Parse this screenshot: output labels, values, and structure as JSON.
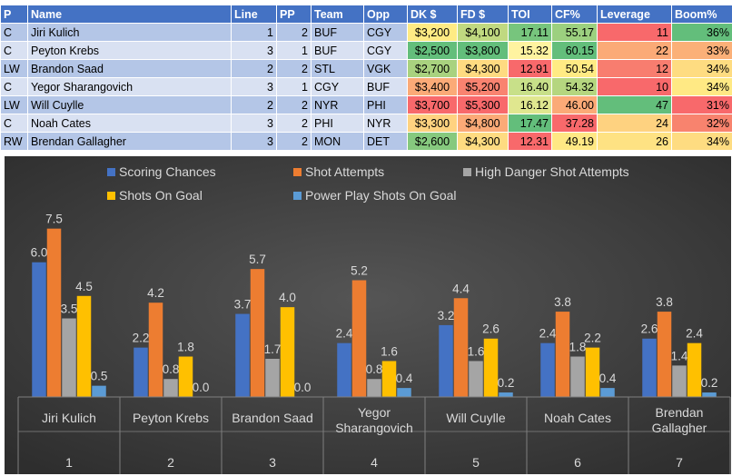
{
  "table": {
    "headers": [
      "P",
      "Name",
      "Line",
      "PP",
      "Team",
      "Opp",
      "DK $",
      "FD $",
      "TOI",
      "CF%",
      "Leverage",
      "Boom%"
    ],
    "rows": [
      {
        "P": "C",
        "Name": "Jiri Kulich",
        "Line": "1",
        "PP": "2",
        "Team": "BUF",
        "Opp": "CGY",
        "DK": "$3,200",
        "FD": "$4,100",
        "TOI": "17.11",
        "CF": "55.17",
        "Leverage": "11",
        "Boom": "36%"
      },
      {
        "P": "C",
        "Name": "Peyton Krebs",
        "Line": "3",
        "PP": "1",
        "Team": "BUF",
        "Opp": "CGY",
        "DK": "$2,500",
        "FD": "$3,800",
        "TOI": "15.32",
        "CF": "60.15",
        "Leverage": "22",
        "Boom": "33%"
      },
      {
        "P": "LW",
        "Name": "Brandon Saad",
        "Line": "2",
        "PP": "2",
        "Team": "STL",
        "Opp": "VGK",
        "DK": "$2,700",
        "FD": "$4,300",
        "TOI": "12.91",
        "CF": "50.54",
        "Leverage": "12",
        "Boom": "34%"
      },
      {
        "P": "C",
        "Name": "Yegor Sharangovich",
        "Line": "3",
        "PP": "1",
        "Team": "CGY",
        "Opp": "BUF",
        "DK": "$3,400",
        "FD": "$5,200",
        "TOI": "16.40",
        "CF": "54.32",
        "Leverage": "10",
        "Boom": "34%"
      },
      {
        "P": "LW",
        "Name": "Will Cuylle",
        "Line": "2",
        "PP": "2",
        "Team": "NYR",
        "Opp": "PHI",
        "DK": "$3,700",
        "FD": "$5,300",
        "TOI": "16.12",
        "CF": "46.00",
        "Leverage": "47",
        "Boom": "31%"
      },
      {
        "P": "C",
        "Name": "Noah Cates",
        "Line": "3",
        "PP": "2",
        "Team": "PHI",
        "Opp": "NYR",
        "DK": "$3,300",
        "FD": "$4,800",
        "TOI": "17.47",
        "CF": "37.28",
        "Leverage": "24",
        "Boom": "32%"
      },
      {
        "P": "RW",
        "Name": "Brendan Gallagher",
        "Line": "3",
        "PP": "2",
        "Team": "MON",
        "Opp": "DET",
        "DK": "$2,600",
        "FD": "$4,300",
        "TOI": "12.31",
        "CF": "49.19",
        "Leverage": "26",
        "Boom": "34%"
      }
    ],
    "cell_colors": {
      "DK": [
        "#ffeb84",
        "#63be7b",
        "#a9d27f",
        "#fbaa77",
        "#f8696b",
        "#ffd280",
        "#86c97e"
      ],
      "FD": [
        "#c0d980",
        "#63be7b",
        "#fedb81",
        "#f98370",
        "#f8696b",
        "#fbaa77",
        "#fedb81"
      ],
      "TOI": [
        "#77c57d",
        "#fff3a0",
        "#f8696b",
        "#c8e089",
        "#e0e78f",
        "#63be7b",
        "#f8696b"
      ],
      "CF": [
        "#9cd07f",
        "#63be7b",
        "#ffeb84",
        "#b5d67f",
        "#fbaa77",
        "#f8696b",
        "#ffe884"
      ],
      "Leverage": [
        "#f8696b",
        "#fbaa77",
        "#f87d6f",
        "#f8696b",
        "#63be7b",
        "#fed280",
        "#fee283"
      ],
      "Boom": [
        "#63be7b",
        "#fbb078",
        "#fedc81",
        "#ffe984",
        "#f8696b",
        "#f8836e",
        "#fedc81"
      ]
    }
  },
  "chart_data": {
    "type": "bar",
    "background": "#404040",
    "categories": [
      {
        "name": "Jiri Kulich",
        "name_lines": [
          "Jiri Kulich"
        ],
        "index": "1"
      },
      {
        "name": "Peyton Krebs",
        "name_lines": [
          "Peyton Krebs"
        ],
        "index": "2"
      },
      {
        "name": "Brandon Saad",
        "name_lines": [
          "Brandon Saad"
        ],
        "index": "3"
      },
      {
        "name": "Yegor Sharangovich",
        "name_lines": [
          "Yegor",
          "Sharangovich"
        ],
        "index": "4"
      },
      {
        "name": "Will Cuylle",
        "name_lines": [
          "Will Cuylle"
        ],
        "index": "5"
      },
      {
        "name": "Noah Cates",
        "name_lines": [
          "Noah Cates"
        ],
        "index": "6"
      },
      {
        "name": "Brendan Gallagher",
        "name_lines": [
          "Brendan",
          "Gallagher"
        ],
        "index": "7"
      }
    ],
    "series": [
      {
        "name": "Scoring Chances",
        "color": "#4472c4",
        "values": [
          6.0,
          2.2,
          3.7,
          2.4,
          3.2,
          2.4,
          2.6
        ],
        "labels": [
          "6.0",
          "2.2",
          "3.7",
          "2.4",
          "3.2",
          "2.4",
          "2.6"
        ]
      },
      {
        "name": "Shot Attempts",
        "color": "#ed7d31",
        "values": [
          7.5,
          4.2,
          5.7,
          5.2,
          4.4,
          3.8,
          3.8
        ],
        "labels": [
          "7.5",
          "4.2",
          "5.7",
          "5.2",
          "4.4",
          "3.8",
          "3.8"
        ]
      },
      {
        "name": "High Danger Shot Attempts",
        "color": "#a5a5a5",
        "values": [
          3.5,
          0.8,
          1.7,
          0.8,
          1.6,
          1.8,
          1.4
        ],
        "labels": [
          "3.5",
          "0.8",
          "1.7",
          "0.8",
          "1.6",
          "1.8",
          "1.4"
        ]
      },
      {
        "name": "Shots On Goal",
        "color": "#ffc000",
        "values": [
          4.5,
          1.8,
          4.0,
          1.6,
          2.6,
          2.2,
          2.4
        ],
        "labels": [
          "4.5",
          "1.8",
          "4.0",
          "1.6",
          "2.6",
          "2.2",
          "2.4"
        ]
      },
      {
        "name": "Power Play Shots On Goal",
        "color": "#5b9bd5",
        "values": [
          0.5,
          0.0,
          0.0,
          0.4,
          0.2,
          0.4,
          0.2
        ],
        "labels": [
          "0.5",
          "0.0",
          "0.0",
          "0.4",
          "0.2",
          "0.4",
          "0.2"
        ]
      }
    ],
    "ylim": [
      0,
      8.7
    ],
    "grid": false,
    "legend_position": "top"
  }
}
